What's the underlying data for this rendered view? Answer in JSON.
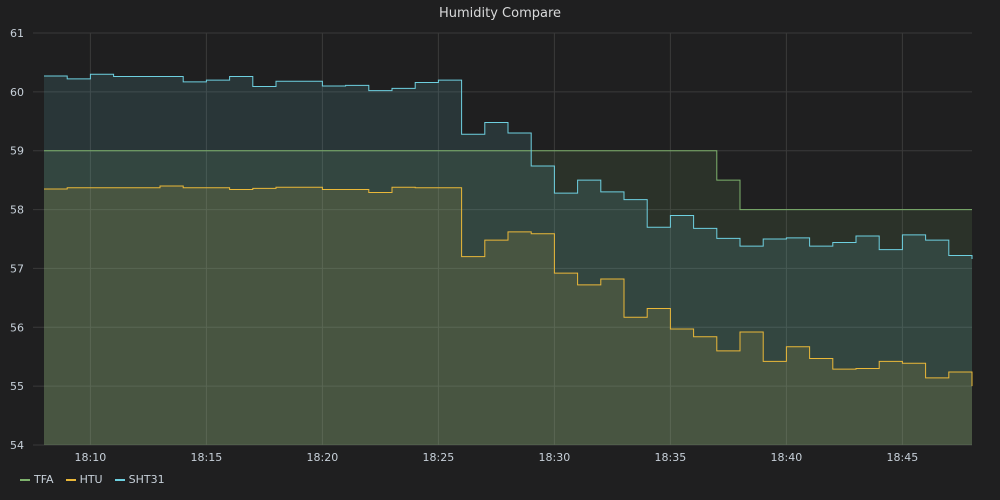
{
  "panel": {
    "title": "Humidity Compare"
  },
  "colors": {
    "background": "#1f1f20",
    "grid": "#3a3a3a",
    "text": "#c7d0d9"
  },
  "chart_data": {
    "type": "area",
    "title": "Humidity Compare",
    "xlabel": "",
    "ylabel": "",
    "x_range": [
      "18:08",
      "18:48"
    ],
    "ylim": [
      54,
      61
    ],
    "y_ticks": [
      54,
      55,
      56,
      57,
      58,
      59,
      60,
      61
    ],
    "x_ticks": [
      "18:10",
      "18:15",
      "18:20",
      "18:25",
      "18:30",
      "18:35",
      "18:40",
      "18:45"
    ],
    "grid": true,
    "legend_position": "bottom-left",
    "series": [
      {
        "name": "TFA",
        "color": "#7eb26d",
        "points": [
          [
            "18:08",
            59.0
          ],
          [
            "18:37",
            59.0
          ],
          [
            "18:37",
            58.5
          ],
          [
            "18:38",
            58.5
          ],
          [
            "18:38",
            58.0
          ],
          [
            "18:48",
            58.0
          ]
        ]
      },
      {
        "name": "HTU",
        "color": "#eab839",
        "points": [
          [
            "18:08",
            58.35
          ],
          [
            "18:09",
            58.37
          ],
          [
            "18:13",
            58.4
          ],
          [
            "18:14",
            58.37
          ],
          [
            "18:16",
            58.34
          ],
          [
            "18:17",
            58.36
          ],
          [
            "18:18",
            58.38
          ],
          [
            "18:20",
            58.34
          ],
          [
            "18:22",
            58.29
          ],
          [
            "18:23",
            58.38
          ],
          [
            "18:24",
            58.37
          ],
          [
            "18:25",
            58.37
          ],
          [
            "18:26",
            57.2
          ],
          [
            "18:27",
            57.48
          ],
          [
            "18:28",
            57.62
          ],
          [
            "18:29",
            57.59
          ],
          [
            "18:30",
            56.92
          ],
          [
            "18:31",
            56.72
          ],
          [
            "18:32",
            56.82
          ],
          [
            "18:33",
            56.17
          ],
          [
            "18:34",
            56.32
          ],
          [
            "18:35",
            55.97
          ],
          [
            "18:36",
            55.84
          ],
          [
            "18:37",
            55.6
          ],
          [
            "18:38",
            55.92
          ],
          [
            "18:39",
            55.42
          ],
          [
            "18:40",
            55.67
          ],
          [
            "18:41",
            55.47
          ],
          [
            "18:42",
            55.29
          ],
          [
            "18:43",
            55.3
          ],
          [
            "18:44",
            55.42
          ],
          [
            "18:45",
            55.39
          ],
          [
            "18:46",
            55.14
          ],
          [
            "18:47",
            55.24
          ],
          [
            "18:48",
            55.0
          ]
        ]
      },
      {
        "name": "SHT31",
        "color": "#6ed0e0",
        "points": [
          [
            "18:08",
            60.27
          ],
          [
            "18:09",
            60.22
          ],
          [
            "18:10",
            60.3
          ],
          [
            "18:11",
            60.26
          ],
          [
            "18:14",
            60.17
          ],
          [
            "18:15",
            60.2
          ],
          [
            "18:16",
            60.26
          ],
          [
            "18:17",
            60.09
          ],
          [
            "18:18",
            60.18
          ],
          [
            "18:20",
            60.1
          ],
          [
            "18:21",
            60.11
          ],
          [
            "18:22",
            60.02
          ],
          [
            "18:23",
            60.06
          ],
          [
            "18:24",
            60.16
          ],
          [
            "18:25",
            60.2
          ],
          [
            "18:26",
            59.28
          ],
          [
            "18:27",
            59.48
          ],
          [
            "18:28",
            59.3
          ],
          [
            "18:29",
            58.74
          ],
          [
            "18:30",
            58.28
          ],
          [
            "18:31",
            58.5
          ],
          [
            "18:32",
            58.3
          ],
          [
            "18:33",
            58.17
          ],
          [
            "18:34",
            57.7
          ],
          [
            "18:35",
            57.9
          ],
          [
            "18:36",
            57.68
          ],
          [
            "18:37",
            57.51
          ],
          [
            "18:38",
            57.38
          ],
          [
            "18:39",
            57.5
          ],
          [
            "18:40",
            57.52
          ],
          [
            "18:41",
            57.38
          ],
          [
            "18:42",
            57.44
          ],
          [
            "18:43",
            57.55
          ],
          [
            "18:44",
            57.32
          ],
          [
            "18:45",
            57.57
          ],
          [
            "18:46",
            57.48
          ],
          [
            "18:47",
            57.22
          ],
          [
            "18:48",
            57.16
          ]
        ]
      }
    ]
  }
}
